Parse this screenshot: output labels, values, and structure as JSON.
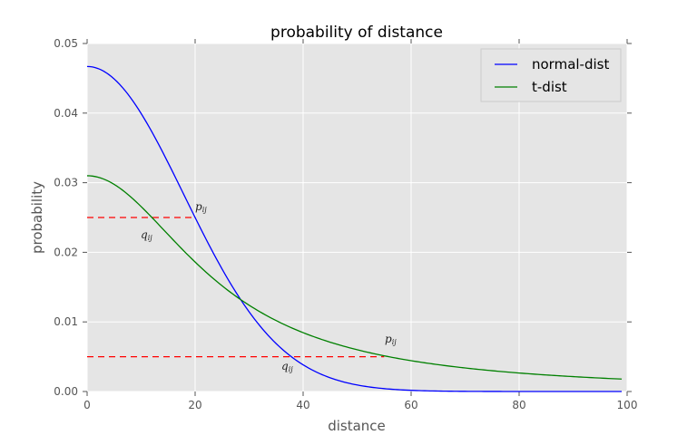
{
  "chart_data": {
    "type": "line",
    "title": "probability of distance",
    "xlabel": "distance",
    "ylabel": "probability",
    "xlim": [
      0,
      100
    ],
    "ylim": [
      0,
      0.05
    ],
    "xticks": [
      "0",
      "20",
      "40",
      "60",
      "80",
      "100"
    ],
    "yticks": [
      "0.00",
      "0.01",
      "0.02",
      "0.03",
      "0.04",
      "0.05"
    ],
    "grid": true,
    "legend_position": "upper right",
    "series": [
      {
        "name": "normal-dist",
        "color": "#0000ff",
        "x": [
          0,
          5,
          10,
          15,
          20,
          25,
          27,
          30,
          35,
          38,
          40,
          45,
          50,
          55,
          60,
          70,
          80,
          90,
          99
        ],
        "values": [
          0.0467,
          0.0448,
          0.0402,
          0.0328,
          0.025,
          0.0175,
          0.0149,
          0.0114,
          0.0069,
          0.0049,
          0.0038,
          0.0019,
          0.0009,
          0.0004,
          0.0002,
          0.0,
          0.0,
          0.0,
          0.0
        ]
      },
      {
        "name": "t-dist",
        "color": "#008000",
        "x": [
          0,
          5,
          10,
          12,
          15,
          20,
          27,
          30,
          40,
          50,
          55,
          60,
          70,
          80,
          90,
          99
        ],
        "values": [
          0.031,
          0.0297,
          0.0265,
          0.025,
          0.0225,
          0.0187,
          0.014,
          0.0124,
          0.0085,
          0.0061,
          0.0052,
          0.0044,
          0.0033,
          0.0026,
          0.0021,
          0.0018
        ]
      }
    ],
    "annotations": [
      {
        "text": "p_ij",
        "x": 20,
        "y": 0.025,
        "type": "label"
      },
      {
        "text": "q_ij",
        "x": 10,
        "y": 0.022,
        "type": "label"
      },
      {
        "text": "p_ij",
        "x": 55,
        "y": 0.007,
        "type": "label"
      },
      {
        "text": "q_ij",
        "x": 36,
        "y": 0.0035,
        "type": "label"
      },
      {
        "type": "hline-dashed",
        "color": "#ff0000",
        "y": 0.025,
        "x_from": 0,
        "x_to": 20
      },
      {
        "type": "hline-dashed",
        "color": "#ff0000",
        "y": 0.005,
        "x_from": 0,
        "x_to": 55
      }
    ]
  },
  "legend": {
    "items": [
      {
        "label": "normal-dist",
        "color": "#0000ff"
      },
      {
        "label": "t-dist",
        "color": "#008000"
      }
    ]
  },
  "annotations_text": {
    "p_main": "p",
    "q_main": "q",
    "sub": "ij"
  }
}
